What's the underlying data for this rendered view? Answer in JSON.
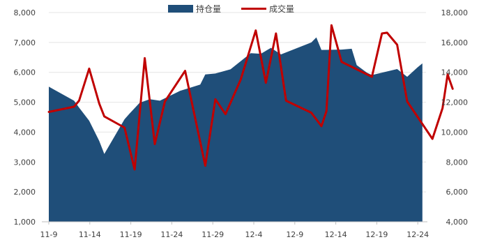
{
  "chart_data": {
    "type": "area+line",
    "title": "",
    "x_tick_labels": [
      "11-9",
      "11-14",
      "11-19",
      "11-24",
      "11-29",
      "12-4",
      "12-9",
      "12-14",
      "12-19",
      "12-24"
    ],
    "left_axis": {
      "min": 1000,
      "max": 8000,
      "ticks": [
        "1,000",
        "2,000",
        "3,000",
        "4,000",
        "5,000",
        "6,000",
        "7,000",
        "8,000"
      ]
    },
    "right_axis": {
      "min": 4000,
      "max": 18000,
      "ticks": [
        "4,000",
        "6,000",
        "8,000",
        "10,000",
        "12,000",
        "14,000",
        "16,000",
        "18,000"
      ]
    },
    "legend": {
      "placement": "top-center"
    },
    "series": [
      {
        "name": "持仓量",
        "type": "area",
        "axis": "left",
        "color": "#1f4e79",
        "points": [
          [
            0,
            5520
          ],
          [
            5,
            5050
          ],
          [
            6,
            4820
          ],
          [
            8,
            4380
          ],
          [
            10,
            3700
          ],
          [
            11,
            3270
          ],
          [
            15,
            4430
          ],
          [
            16,
            4620
          ],
          [
            18,
            4980
          ],
          [
            20,
            5100
          ],
          [
            22,
            5050
          ],
          [
            26,
            5380
          ],
          [
            30,
            5590
          ],
          [
            31,
            5930
          ],
          [
            33,
            5960
          ],
          [
            36,
            6100
          ],
          [
            40,
            6640
          ],
          [
            42,
            6620
          ],
          [
            44,
            6820
          ],
          [
            46,
            6600
          ],
          [
            52,
            7000
          ],
          [
            53,
            7170
          ],
          [
            54,
            6750
          ],
          [
            58,
            6760
          ],
          [
            60,
            6790
          ],
          [
            61,
            6240
          ],
          [
            63,
            5990
          ],
          [
            64,
            5910
          ],
          [
            69,
            6110
          ],
          [
            71,
            5850
          ],
          [
            73,
            6160
          ],
          [
            74,
            6300
          ]
        ]
      },
      {
        "name": "成交量",
        "type": "line",
        "axis": "right",
        "color": "#c00000",
        "points": [
          [
            0,
            11350
          ],
          [
            5,
            11700
          ],
          [
            6,
            12100
          ],
          [
            8,
            14250
          ],
          [
            10,
            11900
          ],
          [
            11,
            11050
          ],
          [
            15,
            10300
          ],
          [
            17,
            7500
          ],
          [
            19,
            14950
          ],
          [
            21,
            9200
          ],
          [
            23,
            12050
          ],
          [
            27,
            14100
          ],
          [
            31,
            7750
          ],
          [
            33,
            12200
          ],
          [
            35,
            11200
          ],
          [
            38,
            13500
          ],
          [
            41,
            16800
          ],
          [
            43,
            13300
          ],
          [
            45,
            16600
          ],
          [
            47,
            12100
          ],
          [
            52,
            11300
          ],
          [
            54,
            10400
          ],
          [
            55,
            11400
          ],
          [
            56,
            17150
          ],
          [
            58,
            14700
          ],
          [
            64,
            13700
          ],
          [
            66,
            16600
          ],
          [
            67,
            16650
          ],
          [
            69,
            15850
          ],
          [
            71,
            12050
          ],
          [
            76,
            9550
          ],
          [
            78,
            11600
          ],
          [
            79,
            13850
          ],
          [
            80,
            12900
          ]
        ]
      }
    ]
  }
}
